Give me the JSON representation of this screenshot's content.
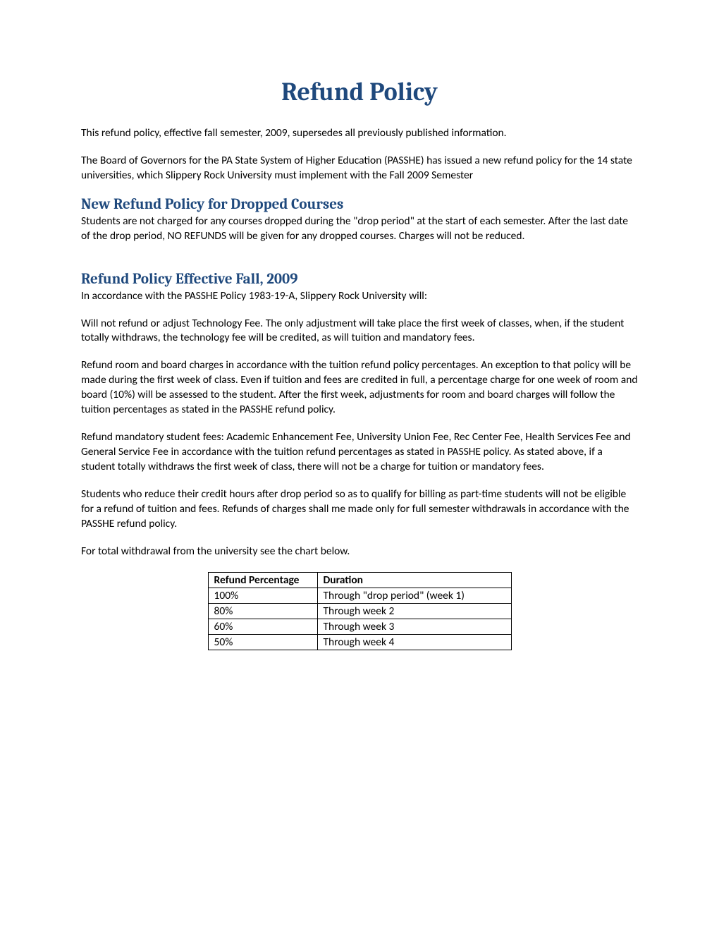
{
  "title": "Refund Policy",
  "intro": {
    "p1": "This refund policy, effective fall semester, 2009, supersedes all previously published information.",
    "p2": "The Board of Governors for the PA State System of Higher Education (PASSHE) has issued a new refund policy for the 14 state universities, which Slippery Rock University must implement with the Fall 2009 Semester"
  },
  "section1": {
    "heading": "New Refund Policy for Dropped Courses",
    "p1": "Students are not charged for any courses dropped during the \"drop period\" at the start of each semester. After the last date of the drop period, NO REFUNDS will be given for any dropped courses. Charges will not be reduced."
  },
  "section2": {
    "heading": "Refund Policy Effective Fall, 2009",
    "p1": "In accordance with the PASSHE Policy 1983-19-A, Slippery Rock University will:",
    "p2": "Will not refund or adjust Technology Fee. The only adjustment will take place the first week of classes, when, if the student totally withdraws, the technology fee will be credited, as will tuition and mandatory fees.",
    "p3": "Refund room and board charges in accordance with the tuition refund policy percentages. An exception to that policy will be made during the first week of class. Even if tuition and fees are credited in full, a percentage charge for one week of room and board (10%) will be assessed to the student. After the first week, adjustments for room and board charges will follow the tuition percentages as stated in the PASSHE refund policy.",
    "p4": "Refund mandatory student fees: Academic Enhancement Fee, University Union Fee, Rec Center Fee, Health Services Fee and General Service Fee in accordance with the tuition refund percentages as stated in PASSHE policy. As stated above, if a student totally withdraws the first week of class, there will not be a charge for tuition or mandatory fees.",
    "p5": "Students who reduce their credit hours after drop period so as to qualify for billing as part-time students will not be eligible for a refund of tuition and fees. Refunds of charges shall me made only for full semester withdrawals in accordance with the PASSHE refund policy.",
    "p6": "For total withdrawal from the university see the chart below."
  },
  "table": {
    "headers": {
      "col1": "Refund Percentage",
      "col2": "Duration"
    },
    "rows": [
      {
        "percentage": "100%",
        "duration": "Through \"drop period\" (week 1)"
      },
      {
        "percentage": "80%",
        "duration": "Through week 2"
      },
      {
        "percentage": "60%",
        "duration": "Through week 3"
      },
      {
        "percentage": "50%",
        "duration": "Through week 4"
      }
    ]
  },
  "styling": {
    "title_color": "#1f497d",
    "heading_color": "#1f497d",
    "body_text_color": "#000000",
    "background_color": "#ffffff",
    "border_color": "#000000",
    "title_fontsize": 36,
    "heading_fontsize": 21,
    "body_fontsize": 15.5,
    "title_font": "Cambria",
    "body_font": "Calibri"
  }
}
